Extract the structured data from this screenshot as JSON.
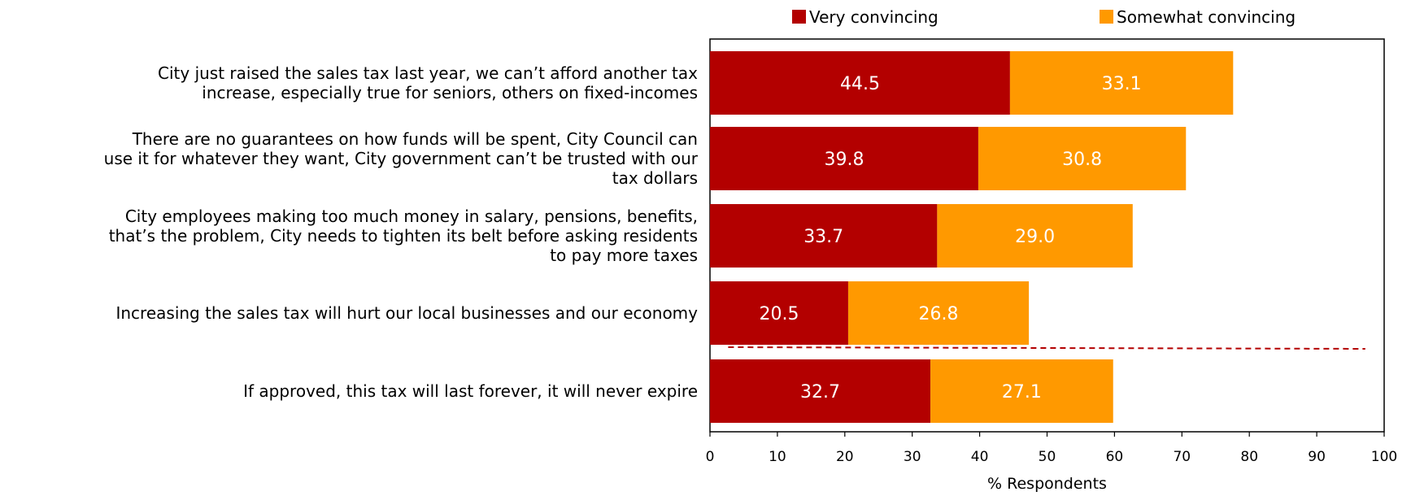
{
  "chart_data": {
    "type": "bar",
    "orientation": "horizontal",
    "stacked": true,
    "categories": [
      [
        "City just raised the sales tax last year, we can’t afford another tax",
        "increase, especially true for seniors, others on fixed-incomes"
      ],
      [
        "There are no guarantees on how funds will be spent, City Council can",
        "use it for whatever they want, City government can’t be trusted with our",
        "tax dollars"
      ],
      [
        "City employees making too much money in salary, pensions, benefits,",
        "that’s the problem, City needs to tighten its belt before asking residents",
        "to pay more taxes"
      ],
      [
        "Increasing the sales tax will hurt our local businesses and our economy"
      ],
      [
        "If approved, this tax will last forever, it will never expire"
      ]
    ],
    "series": [
      {
        "name": "Very convincing",
        "color": "#B30000",
        "values": [
          44.5,
          39.8,
          33.7,
          20.5,
          32.7
        ]
      },
      {
        "name": "Somewhat convincing",
        "color": "#FF9900",
        "values": [
          33.1,
          30.8,
          29.0,
          26.8,
          27.1
        ]
      }
    ],
    "data_labels": [
      [
        "44.5",
        "39.8",
        "33.7",
        "20.5",
        "32.7"
      ],
      [
        "33.1",
        "30.8",
        "29.0",
        "26.8",
        "27.1"
      ]
    ],
    "xlabel": "% Respondents",
    "xlim": [
      0,
      100
    ],
    "xticks": [
      0,
      10,
      20,
      30,
      40,
      50,
      60,
      70,
      80,
      90,
      100
    ],
    "legend": "top",
    "grid": false,
    "separator": {
      "after_category_index": 3,
      "style": "dashed",
      "color": "#B30000"
    }
  }
}
